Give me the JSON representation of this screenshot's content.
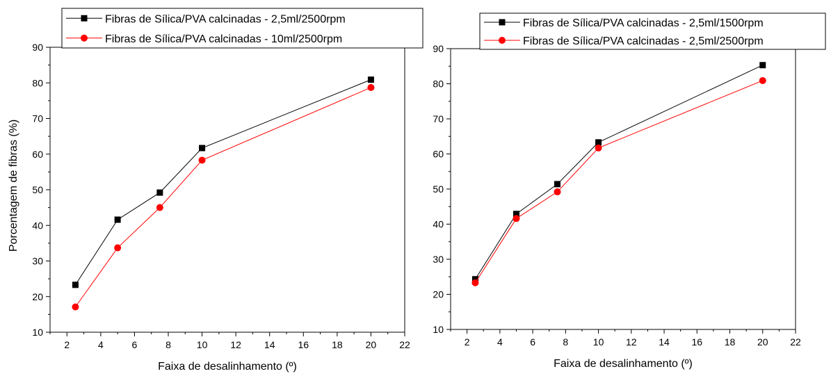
{
  "chart_data": [
    {
      "type": "line",
      "title": "",
      "xlabel": "Faixa de desalinhamento (º)",
      "ylabel": "Porcentagem de fibras (%)",
      "xlim": [
        1,
        22
      ],
      "ylim": [
        10,
        90
      ],
      "xticks": [
        2,
        4,
        6,
        8,
        10,
        12,
        14,
        16,
        18,
        20,
        22
      ],
      "yticks": [
        10,
        20,
        30,
        40,
        50,
        60,
        70,
        80,
        90
      ],
      "grid": false,
      "legend_position": "top, above plot",
      "x": [
        2.5,
        5,
        7.5,
        10,
        20
      ],
      "series": [
        {
          "name": "Fibras de Sílica/PVA calcinadas - 2,5ml/2500rpm",
          "color": "#000000",
          "marker": "square",
          "values": [
            23.3,
            41.6,
            49.2,
            61.7,
            80.9
          ]
        },
        {
          "name": "Fibras de Sílica/PVA calcinadas - 10ml/2500rpm",
          "color": "#ff0000",
          "marker": "circle",
          "values": [
            17.1,
            33.7,
            45.0,
            58.3,
            78.7
          ]
        }
      ]
    },
    {
      "type": "line",
      "title": "",
      "xlabel": "Faixa de desalinhamento (º)",
      "ylabel": "",
      "xlim": [
        1,
        22
      ],
      "ylim": [
        10,
        90
      ],
      "xticks": [
        2,
        4,
        6,
        8,
        10,
        12,
        14,
        16,
        18,
        20,
        22
      ],
      "yticks": [
        10,
        20,
        30,
        40,
        50,
        60,
        70,
        80,
        90
      ],
      "grid": false,
      "legend_position": "top, above plot",
      "x": [
        2.5,
        5,
        7.5,
        10,
        20
      ],
      "series": [
        {
          "name": "Fibras de Sílica/PVA calcinadas - 2,5ml/1500rpm",
          "color": "#000000",
          "marker": "square",
          "values": [
            24.3,
            42.9,
            51.4,
            63.3,
            85.3
          ]
        },
        {
          "name": "Fibras de Sílica/PVA calcinadas - 2,5ml/2500rpm",
          "color": "#ff0000",
          "marker": "circle",
          "values": [
            23.3,
            41.6,
            49.2,
            61.7,
            80.9
          ]
        }
      ]
    }
  ]
}
